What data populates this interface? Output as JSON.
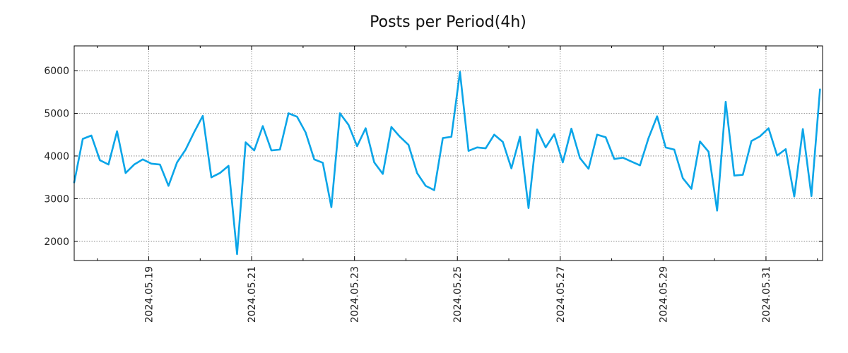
{
  "chart_data": {
    "type": "line",
    "title": "Posts per Period(4h)",
    "xlabel": "",
    "ylabel": "",
    "ylim": [
      1550,
      6580
    ],
    "xlim": [
      0,
      87.3
    ],
    "grid": true,
    "line_color": "#0aa5e8",
    "y_ticks": [
      2000,
      3000,
      4000,
      5000,
      6000
    ],
    "y_tick_labels": [
      "2000",
      "3000",
      "4000",
      "5000",
      "6000"
    ],
    "x_ticks": [
      8.7,
      20.7,
      32.7,
      44.7,
      56.7,
      68.7,
      80.7
    ],
    "x_tick_labels": [
      "2024.05.19",
      "2024.05.21",
      "2024.05.23",
      "2024.05.25",
      "2024.05.27",
      "2024.05.29",
      "2024.05.31"
    ],
    "x_minor_ticks": [
      2.7,
      14.7,
      26.7,
      38.7,
      50.7,
      62.7,
      74.7,
      86.7
    ],
    "series": [
      {
        "name": "Posts",
        "values": [
          3380,
          4400,
          4480,
          3900,
          3800,
          4580,
          3600,
          3800,
          3920,
          3820,
          3800,
          3300,
          3850,
          4150,
          4560,
          4940,
          3500,
          3600,
          3770,
          1700,
          4320,
          4130,
          4700,
          4130,
          4150,
          5000,
          4920,
          4550,
          3920,
          3840,
          2800,
          5000,
          4730,
          4230,
          4650,
          3850,
          3580,
          4680,
          4450,
          4260,
          3600,
          3300,
          3200,
          4420,
          4450,
          5970,
          4120,
          4200,
          4180,
          4500,
          4330,
          3710,
          4450,
          2780,
          4620,
          4200,
          4510,
          3850,
          4640,
          3950,
          3700,
          4500,
          4440,
          3930,
          3960,
          3870,
          3780,
          4420,
          4930,
          4200,
          4150,
          3480,
          3230,
          4340,
          4100,
          2720,
          5270,
          3540,
          3560,
          4350,
          4460,
          4650,
          4010,
          4160,
          3050,
          4630,
          3060,
          5560
        ]
      }
    ]
  }
}
